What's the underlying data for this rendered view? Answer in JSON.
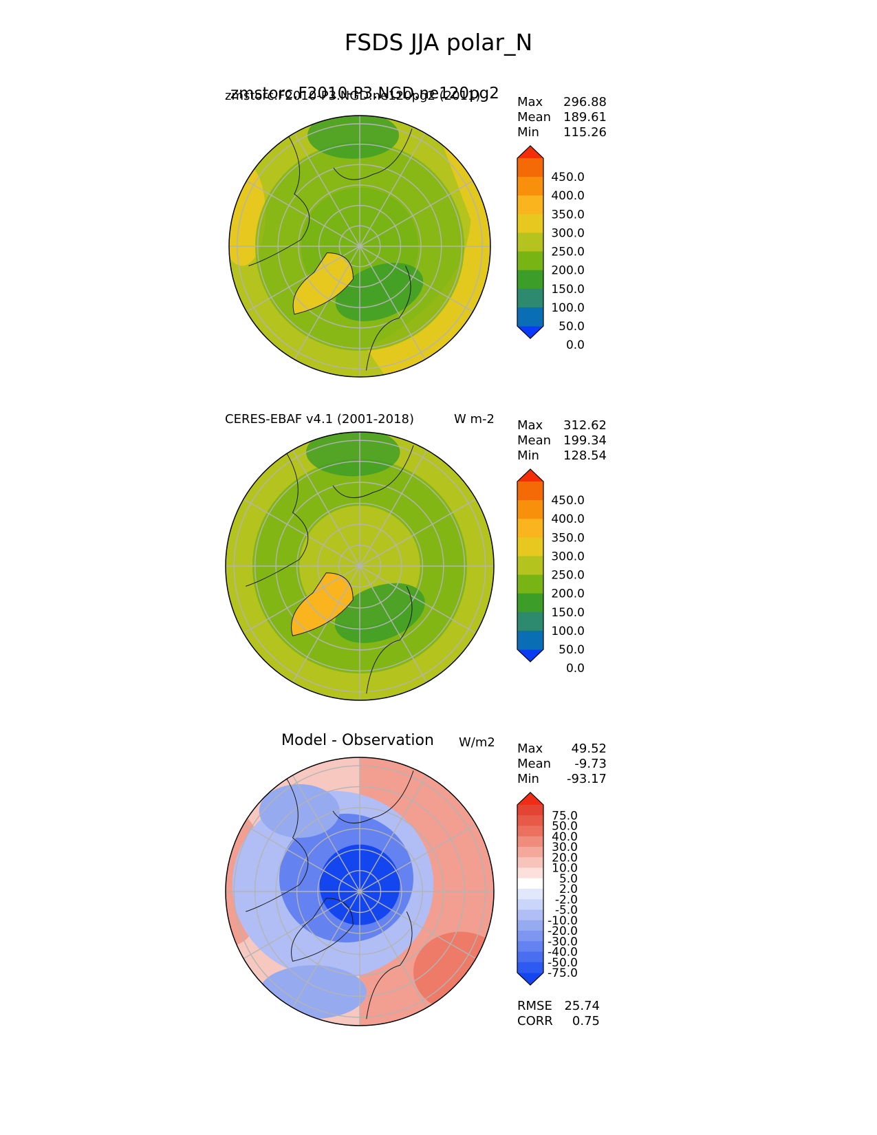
{
  "title": "FSDS JJA polar_N",
  "colors": {
    "abs_levels": [
      "#0a3cf5",
      "#0a6eb4",
      "#2e8a6e",
      "#3c9e28",
      "#78b414",
      "#b4c31e",
      "#e6c81e",
      "#fab41e",
      "#f8900c",
      "#f46a06",
      "#f42e08"
    ],
    "diff_levels": [
      "#1446f0",
      "#2d5af0",
      "#4a6ef0",
      "#6482f0",
      "#7f96f0",
      "#96aaf0",
      "#b0bef5",
      "#cad5fa",
      "#e2e8fc",
      "#ffffff",
      "#fbe0dc",
      "#f7c4bc",
      "#f4a89c",
      "#f08c7c",
      "#ec705e",
      "#e85a48",
      "#e44432",
      "#ef2d16"
    ]
  },
  "chart_data": [
    {
      "type": "heatmap",
      "projection": "north-polar-stereographic",
      "title_left": "zmstorc.F2010-P3.NGD.ne120pg2 (2011)",
      "title_left_overlap": "zmstorc.F2010-P3.NGD.ne120pg2",
      "title_right": "W/m2",
      "stats": [
        {
          "label": "Max",
          "value": "296.88"
        },
        {
          "label": "Mean",
          "value": "189.61"
        },
        {
          "label": "Min",
          "value": "115.26"
        }
      ],
      "colorbar": {
        "ticks": [
          "450.0",
          "400.0",
          "350.0",
          "300.0",
          "250.0",
          "200.0",
          "150.0",
          "100.0",
          "50.0",
          "0.0"
        ],
        "extend": "both"
      }
    },
    {
      "type": "heatmap",
      "projection": "north-polar-stereographic",
      "title_left": "CERES-EBAF v4.1 (2001-2018)",
      "title_right": "W m-2",
      "stats": [
        {
          "label": "Max",
          "value": "312.62"
        },
        {
          "label": "Mean",
          "value": "199.34"
        },
        {
          "label": "Min",
          "value": "128.54"
        }
      ],
      "colorbar": {
        "ticks": [
          "450.0",
          "400.0",
          "350.0",
          "300.0",
          "250.0",
          "200.0",
          "150.0",
          "100.0",
          "50.0",
          "0.0"
        ],
        "extend": "both"
      }
    },
    {
      "type": "heatmap",
      "projection": "north-polar-stereographic",
      "title_center": "Model - Observation",
      "title_right": "W/m2",
      "stats": [
        {
          "label": "Max",
          "value": "49.52"
        },
        {
          "label": "Mean",
          "value": "-9.73"
        },
        {
          "label": "Min",
          "value": "-93.17"
        }
      ],
      "footer_stats": [
        {
          "label": "RMSE",
          "value": "25.74"
        },
        {
          "label": "CORR",
          "value": "0.75"
        }
      ],
      "colorbar": {
        "ticks": [
          "75.0",
          "50.0",
          "40.0",
          "30.0",
          "20.0",
          "10.0",
          "5.0",
          "2.0",
          "-2.0",
          "-5.0",
          "-10.0",
          "-20.0",
          "-30.0",
          "-40.0",
          "-50.0",
          "-75.0"
        ],
        "extend": "both"
      }
    }
  ]
}
